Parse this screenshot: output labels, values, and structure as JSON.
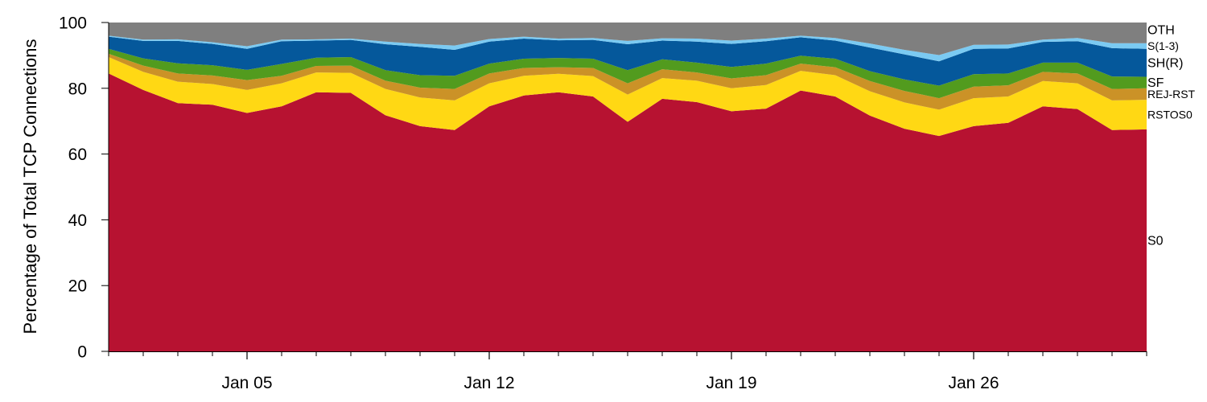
{
  "chart_data": {
    "type": "area",
    "stacked": true,
    "title": "",
    "xlabel": "",
    "ylabel": "Percentage of Total TCP Connections",
    "ylim": [
      0,
      100
    ],
    "yticks": [
      0,
      20,
      40,
      60,
      80,
      100
    ],
    "x": [
      "2015-01-01",
      "2015-01-02",
      "2015-01-03",
      "2015-01-04",
      "2015-01-05",
      "2015-01-06",
      "2015-01-07",
      "2015-01-08",
      "2015-01-09",
      "2015-01-10",
      "2015-01-11",
      "2015-01-12",
      "2015-01-13",
      "2015-01-14",
      "2015-01-15",
      "2015-01-16",
      "2015-01-17",
      "2015-01-18",
      "2015-01-19",
      "2015-01-20",
      "2015-01-21",
      "2015-01-22",
      "2015-01-23",
      "2015-01-24",
      "2015-01-25",
      "2015-01-26",
      "2015-01-27",
      "2015-01-28",
      "2015-01-29",
      "2015-01-30",
      "2015-01-31"
    ],
    "xlim": [
      "2015-01-01",
      "2015-01-31"
    ],
    "xticks": [
      {
        "date": "2015-01-05",
        "label": "Jan 05"
      },
      {
        "date": "2015-01-12",
        "label": "Jan 12"
      },
      {
        "date": "2015-01-19",
        "label": "Jan 19"
      },
      {
        "date": "2015-01-26",
        "label": "Jan 26"
      }
    ],
    "legend": "right",
    "grid": false,
    "series": [
      {
        "name": "S0",
        "color": "#b71231",
        "values": [
          84.5,
          79.5,
          75.5,
          75,
          72.5,
          74.5,
          78.8,
          78.6,
          71.8,
          68.5,
          67.3,
          74.5,
          77.8,
          78.8,
          77.5,
          69.8,
          76.8,
          75.8,
          73,
          73.8,
          79.3,
          77.5,
          71.7,
          67.7,
          65.5,
          68.5,
          69.5,
          74.5,
          73.7,
          67.3,
          67.5
        ]
      },
      {
        "name": "RSTOS0",
        "color": "#ffd814",
        "values": [
          5,
          5.5,
          6.5,
          6.3,
          7,
          7,
          6,
          6.1,
          8,
          8.7,
          9,
          7,
          6,
          5.6,
          6.2,
          8.3,
          6.3,
          6.5,
          7,
          7.2,
          6,
          6.5,
          7.4,
          8,
          8,
          8.5,
          8,
          7.7,
          7.8,
          9,
          9
        ]
      },
      {
        "name": "REJ-RST",
        "color": "#cb9227",
        "values": [
          1,
          1.9,
          2.5,
          2.6,
          3,
          2.3,
          2,
          2.2,
          2.5,
          3,
          3.5,
          3,
          2.4,
          2,
          2.5,
          3.4,
          2.7,
          2.5,
          3,
          3,
          2.2,
          2.4,
          3.1,
          3.5,
          3.5,
          3.5,
          3.4,
          2.8,
          3,
          3.5,
          3.5
        ]
      },
      {
        "name": "SF",
        "color": "#529b1e",
        "values": [
          1.5,
          2.2,
          3.1,
          3.1,
          3.1,
          3.6,
          2.5,
          2.6,
          3.2,
          3.8,
          4,
          3,
          2.8,
          2.8,
          2.8,
          4,
          3,
          3,
          3.5,
          3.5,
          2.4,
          2.6,
          3,
          3.5,
          3.8,
          3.8,
          3.6,
          2.8,
          3.3,
          3.8,
          3.5
        ]
      },
      {
        "name": "SH(R)",
        "color": "#05589b",
        "values": [
          3.7,
          5.3,
          6.8,
          6.5,
          6.4,
          6.9,
          5.2,
          5.2,
          7.9,
          8.6,
          7.9,
          6.7,
          6.1,
          5.4,
          5.7,
          7.9,
          5.7,
          6.4,
          7,
          6.8,
          5.6,
          5.5,
          7.2,
          7.6,
          7.4,
          7.7,
          7.6,
          6.3,
          6.5,
          8.6,
          8.5
        ]
      },
      {
        "name": "S(1-3)",
        "color": "#7bcaf2",
        "values": [
          0.3,
          0.4,
          0.5,
          0.5,
          0.8,
          0.5,
          0.4,
          0.4,
          0.8,
          0.9,
          1.3,
          0.8,
          0.6,
          0.5,
          0.6,
          1,
          0.7,
          0.9,
          1,
          0.8,
          0.5,
          0.8,
          1.2,
          1.4,
          1.9,
          1.2,
          1.2,
          0.7,
          1,
          1.5,
          1.7
        ]
      },
      {
        "name": "OTH",
        "color": "#7f7f7f",
        "values": [
          4,
          5.2,
          5.1,
          6,
          7.2,
          5.2,
          5.1,
          4.9,
          5.8,
          6.5,
          7,
          5,
          4.3,
          4.9,
          4.7,
          5.6,
          4.8,
          4.9,
          5.5,
          4.9,
          4,
          4.7,
          6.4,
          8.3,
          9.9,
          6.8,
          6.7,
          5.2,
          4.7,
          6.3,
          6.3
        ]
      }
    ]
  }
}
